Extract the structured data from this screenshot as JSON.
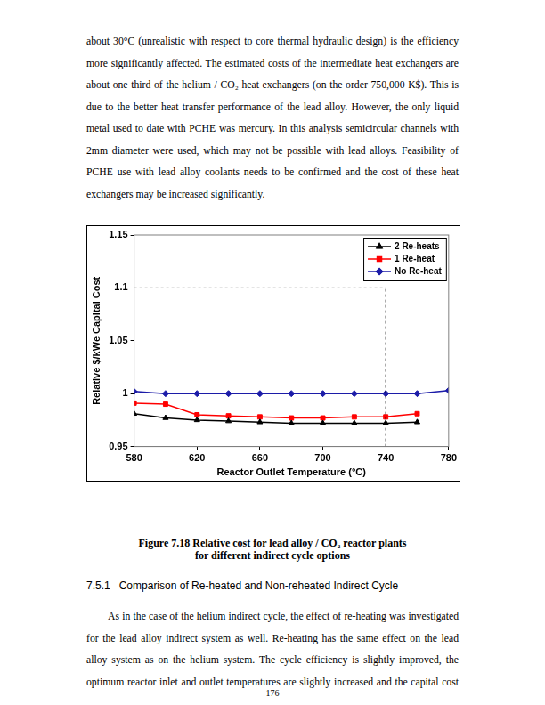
{
  "document": {
    "paragraph_top": [
      "about 30°C (unrealistic with respect to core thermal hydraulic design) is the efficiency",
      "more significantly affected.  The estimated costs of the intermediate heat exchangers are",
      "about one third of the helium / CO₂ heat exchangers (on the order 750,000 K$).  This is",
      "due to the better heat transfer performance of the lead alloy.  However, the only liquid",
      "metal used to date with PCHE was mercury.  In this analysis semicircular channels with",
      "2mm diameter were used, which may not be possible with lead alloys.  Feasibility of",
      "PCHE use with lead alloy coolants needs to be confirmed and the cost of these heat",
      "exchangers may be increased significantly."
    ],
    "caption": [
      "Figure 7.18  Relative cost for lead alloy / CO₂ reactor plants",
      "for different indirect cycle options"
    ],
    "heading": "7.5.1   Comparison of Re-heated and Non-reheated Indirect Cycle",
    "paragraph_bottom": [
      "As in the case of the helium indirect cycle, the effect of re-heating was investigated",
      "for the lead alloy indirect system as well.  Re-heating has the same effect on the lead",
      "alloy system as on the helium system.  The cycle efficiency is slightly improved, the",
      "optimum reactor inlet and outlet temperatures are slightly increased and the capital cost"
    ],
    "page_number": "176"
  },
  "chart_data": {
    "type": "line",
    "x_label": "Reactor Outlet Temperature (°C)",
    "y_label": "Relative $/kWe Capital Cost",
    "x": [
      580,
      600,
      620,
      640,
      660,
      680,
      700,
      720,
      740,
      760,
      780
    ],
    "series": [
      {
        "name": "2 Re-heats",
        "color": "#000000",
        "marker": "triangle",
        "values": [
          0.981,
          0.977,
          0.975,
          0.974,
          0.973,
          0.972,
          0.972,
          0.972,
          0.972,
          0.973,
          null
        ]
      },
      {
        "name": "1 Re-heat",
        "color": "#ff0000",
        "marker": "square",
        "values": [
          0.991,
          0.99,
          0.98,
          0.979,
          0.978,
          0.977,
          0.977,
          0.978,
          0.978,
          0.981,
          null
        ]
      },
      {
        "name": "No Re-heat",
        "color": "#1c1ca8",
        "marker": "diamond",
        "values": [
          1.002,
          1.0,
          1.0,
          1.0,
          1.0,
          1.0,
          1.0,
          1.0,
          1.0,
          1.0,
          1.003
        ]
      }
    ],
    "xlim": [
      580,
      780
    ],
    "ylim": [
      0.95,
      1.15
    ],
    "xticks": [
      580,
      620,
      660,
      700,
      740,
      780
    ],
    "yticks": [
      0.95,
      1,
      1.05,
      1.1,
      1.15
    ],
    "reference_lines": {
      "x": 740,
      "y": 1.1
    },
    "grid": false,
    "legend": "top-right"
  }
}
